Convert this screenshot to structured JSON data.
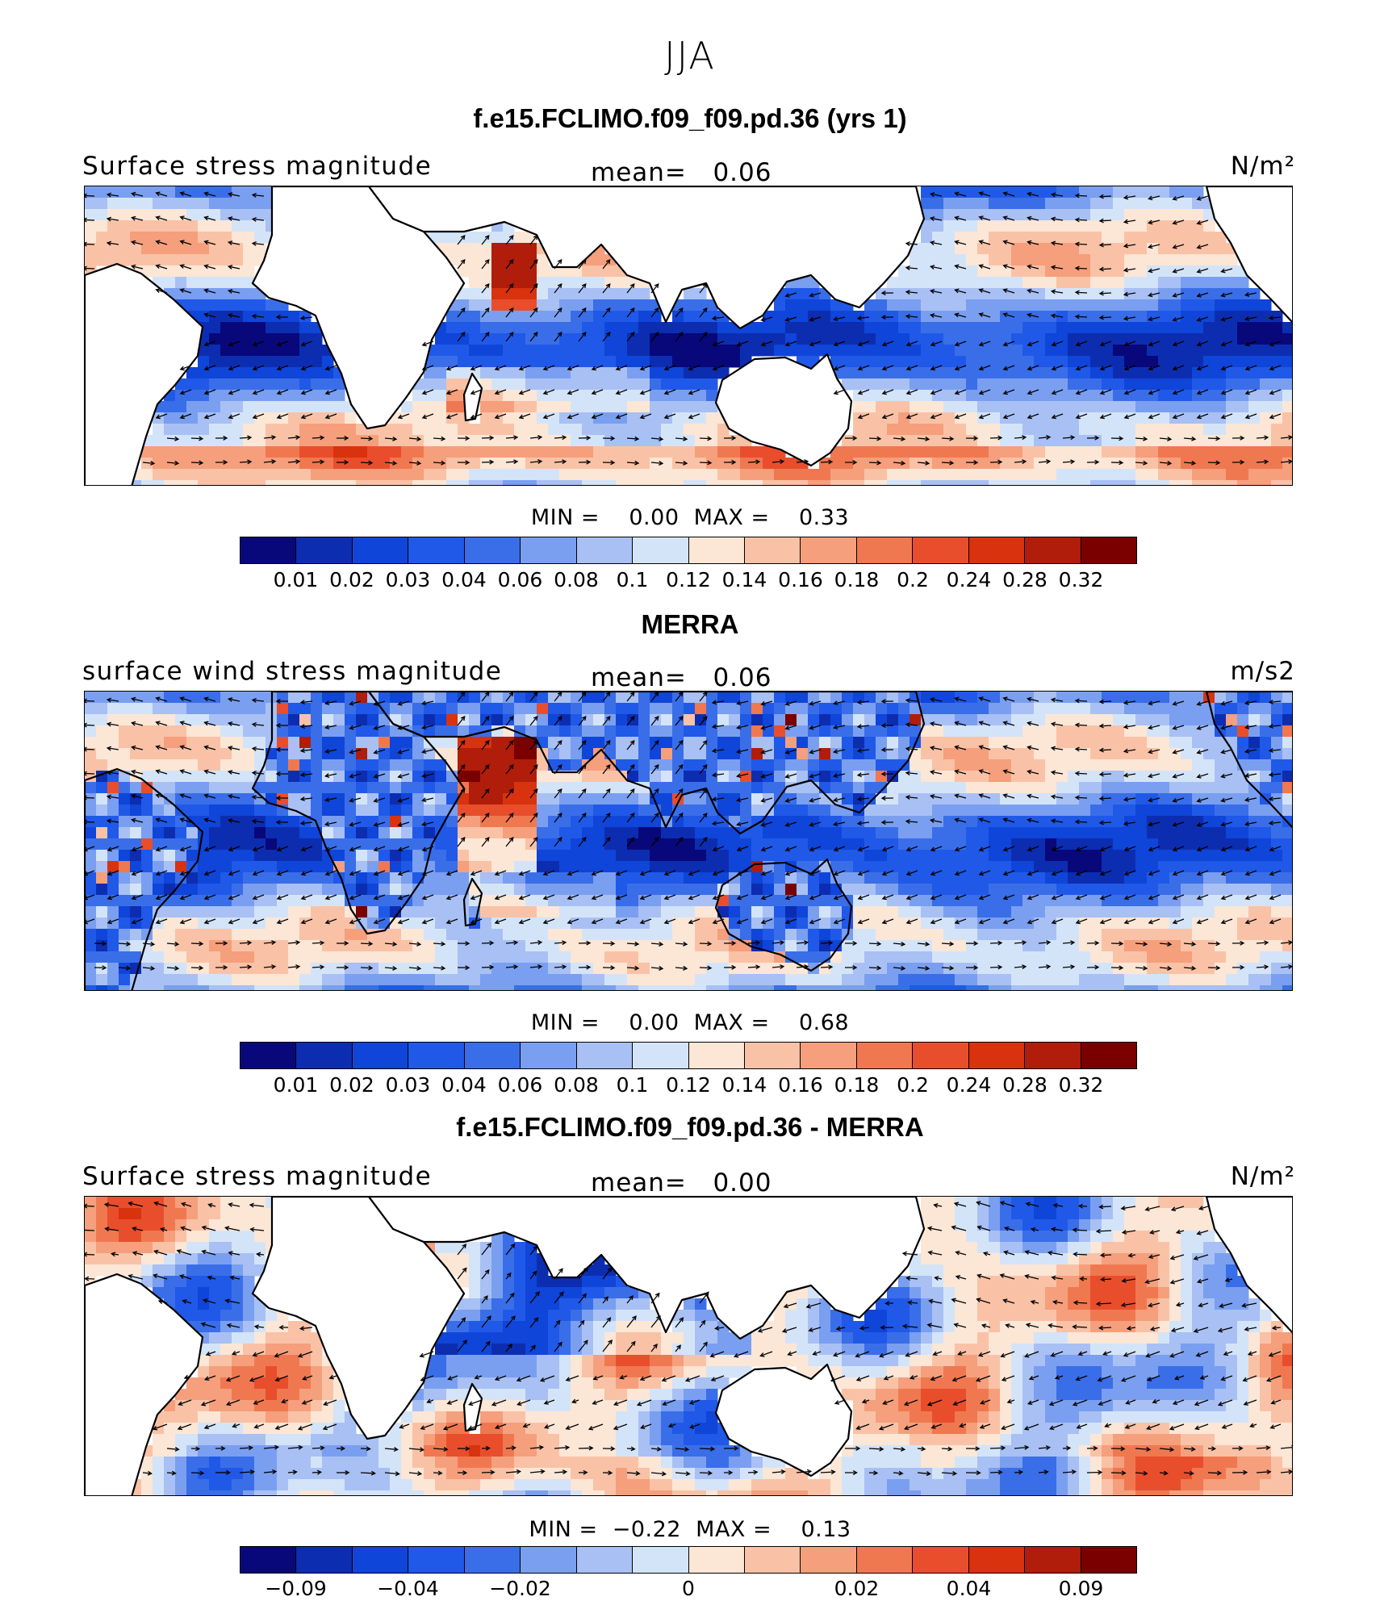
{
  "figure": {
    "season": "JJA",
    "colors": [
      "#08087a",
      "#0d2db0",
      "#0f45d8",
      "#2059e8",
      "#3a6ee8",
      "#7a9ff0",
      "#a8c0f4",
      "#d4e4f8",
      "#fce6d6",
      "#f9c2a6",
      "#f59f7c",
      "#f07850",
      "#e84e2c",
      "#d8330e",
      "#b01d0a",
      "#7a0000"
    ]
  },
  "panels": [
    {
      "title": "f.e15.FCLIMO.f09_f09.pd.36 (yrs 1)",
      "variable": "Surface stress magnitude",
      "units": "N/m²",
      "mean_label": "mean=   0.06",
      "minmax_label": "MIN =    0.00  MAX =    0.33",
      "colorbar_ticks": [
        "0.01",
        "0.02",
        "0.03",
        "0.04",
        "0.06",
        "0.08",
        "0.1",
        "0.12",
        "0.14",
        "0.16",
        "0.18",
        "0.2",
        "0.24",
        "0.28",
        "0.32"
      ],
      "style": "model"
    },
    {
      "title": "MERRA",
      "variable": "surface wind stress magnitude",
      "units": "m/s2",
      "mean_label": "mean=   0.06",
      "minmax_label": "MIN =    0.00  MAX =    0.68",
      "colorbar_ticks": [
        "0.01",
        "0.02",
        "0.03",
        "0.04",
        "0.06",
        "0.08",
        "0.1",
        "0.12",
        "0.14",
        "0.16",
        "0.18",
        "0.2",
        "0.24",
        "0.28",
        "0.32"
      ],
      "style": "obs"
    },
    {
      "title": "f.e15.FCLIMO.f09_f09.pd.36 - MERRA",
      "variable": "Surface stress magnitude",
      "units": "N/m²",
      "mean_label": "mean=   0.00",
      "minmax_label": "MIN =  −0.22  MAX =    0.13",
      "colorbar_ticks": [
        "−0.09",
        "−0.04",
        "−0.02",
        "0",
        "0.02",
        "0.04",
        "0.09"
      ],
      "style": "diff"
    }
  ]
}
